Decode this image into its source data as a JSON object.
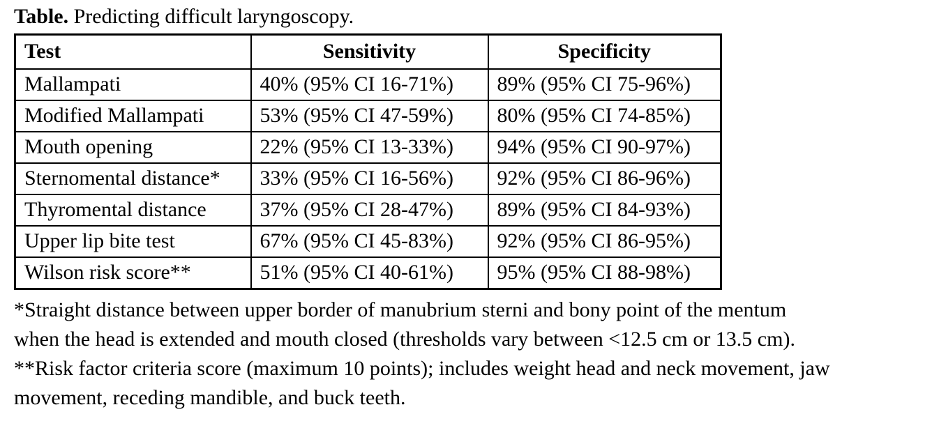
{
  "title": {
    "label": "Table.",
    "text": " Predicting difficult laryngoscopy."
  },
  "table": {
    "columns": [
      "Test",
      "Sensitivity",
      "Specificity"
    ],
    "rows": [
      {
        "test": "Mallampati",
        "sensitivity": "40% (95% CI 16-71%)",
        "specificity": "89% (95% CI 75-96%)"
      },
      {
        "test": "Modified Mallampati",
        "sensitivity": "53% (95% CI 47-59%)",
        "specificity": "80% (95% CI 74-85%)"
      },
      {
        "test": "Mouth opening",
        "sensitivity": "22% (95% CI 13-33%)",
        "specificity": "94% (95% CI 90-97%)"
      },
      {
        "test": "Sternomental distance*",
        "sensitivity": "33% (95% CI 16-56%)",
        "specificity": "92% (95% CI 86-96%)"
      },
      {
        "test": "Thyromental distance",
        "sensitivity": "37% (95% CI 28-47%)",
        "specificity": "89% (95% CI 84-93%)"
      },
      {
        "test": "Upper lip bite test",
        "sensitivity": "67% (95% CI 45-83%)",
        "specificity": "92% (95% CI 86-95%)"
      },
      {
        "test": "Wilson risk score**",
        "sensitivity": "51% (95% CI 40-61%)",
        "specificity": "95% (95% CI 88-98%)"
      }
    ]
  },
  "footnotes": [
    {
      "lines": [
        "*Straight distance between upper border of manubrium sterni and bony point of the mentum",
        "when the head is extended and mouth closed (thresholds vary between <12.5 cm or 13.5 cm)."
      ]
    },
    {
      "lines": [
        "**Risk factor criteria score (maximum 10 points); includes weight head and neck movement, jaw",
        "movement, receding mandible, and buck teeth."
      ]
    }
  ],
  "colors": {
    "text": "#000000",
    "background": "#ffffff",
    "border": "#000000"
  }
}
